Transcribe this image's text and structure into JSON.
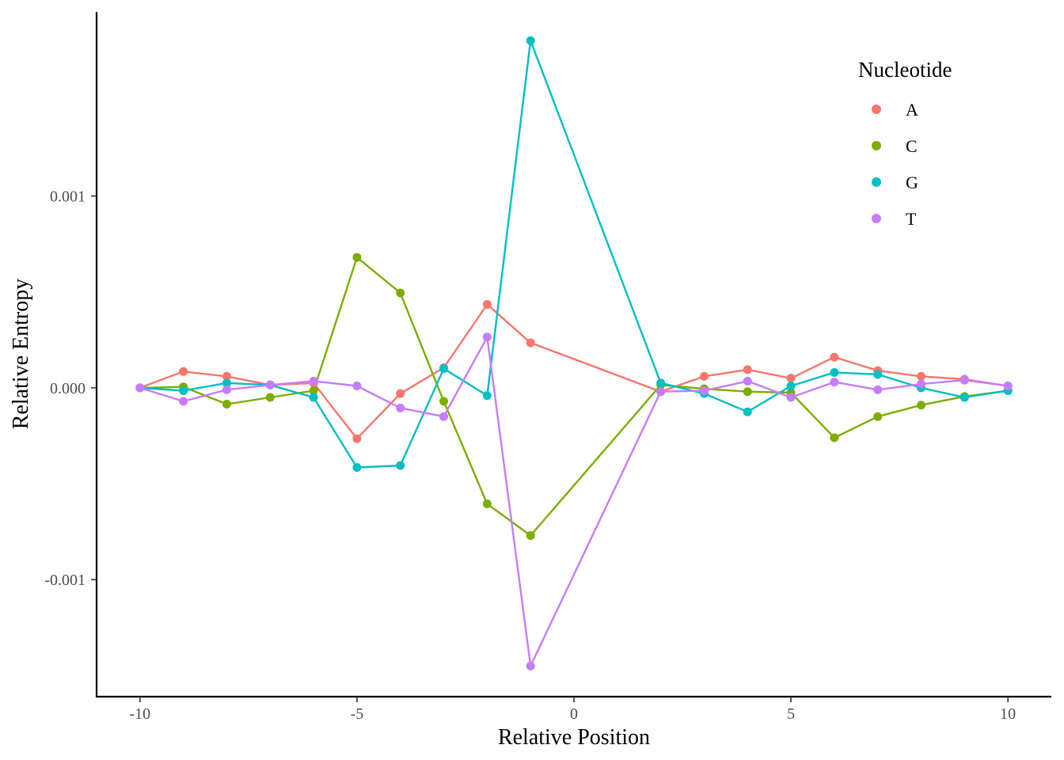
{
  "chart_data": {
    "type": "line",
    "xlabel": "Relative Position",
    "ylabel": "Relative Entropy",
    "xlim": [
      -11,
      11
    ],
    "ylim": [
      -0.00161,
      0.00196
    ],
    "x_ticks": [
      -10,
      -5,
      0,
      5,
      10
    ],
    "x_tick_labels": [
      "-10",
      "-5",
      "0",
      "5",
      "10"
    ],
    "y_ticks": [
      -0.001,
      0.0,
      0.001
    ],
    "y_tick_labels": [
      "-0.001",
      "0.000",
      "0.001"
    ],
    "grid": false,
    "legend": {
      "title": "Nucleotide",
      "position": "top-right"
    },
    "x": [
      -10,
      -9,
      -8,
      -7,
      -6,
      -5,
      -4,
      -3,
      -2,
      -1,
      2,
      3,
      4,
      5,
      6,
      7,
      8,
      9,
      10
    ],
    "series": [
      {
        "name": "A",
        "color": "#F8766D",
        "values": [
          0.0,
          8.5e-05,
          6e-05,
          1.5e-05,
          2.5e-05,
          -0.000265,
          -3e-05,
          0.000105,
          0.000435,
          0.000235,
          -2e-05,
          6e-05,
          9.5e-05,
          5e-05,
          0.00016,
          9e-05,
          6e-05,
          4.5e-05,
          1e-05
        ]
      },
      {
        "name": "C",
        "color": "#7CAE00",
        "values": [
          0.0,
          5e-06,
          -8.5e-05,
          -5e-05,
          -1.5e-05,
          0.00068,
          0.000495,
          -7e-05,
          -0.000605,
          -0.00077,
          1.5e-05,
          -5e-06,
          -2e-05,
          -2.5e-05,
          -0.00026,
          -0.00015,
          -9e-05,
          -4.5e-05,
          -1.5e-05
        ]
      },
      {
        "name": "G",
        "color": "#00BFC4",
        "values": [
          0.0,
          -1.5e-05,
          2.5e-05,
          1.5e-05,
          -5e-05,
          -0.000415,
          -0.000405,
          0.0001,
          -4e-05,
          0.00181,
          2.5e-05,
          -3e-05,
          -0.000125,
          1e-05,
          8e-05,
          7e-05,
          0.0,
          -5e-05,
          -1.5e-05
        ]
      },
      {
        "name": "T",
        "color": "#C77CFF",
        "values": [
          0.0,
          -7e-05,
          -1e-05,
          1.5e-05,
          3.5e-05,
          1e-05,
          -0.000105,
          -0.00015,
          0.000265,
          -0.00145,
          -2e-05,
          -1.5e-05,
          3.5e-05,
          -5e-05,
          3e-05,
          -1e-05,
          2e-05,
          4e-05,
          1e-05
        ]
      }
    ]
  }
}
